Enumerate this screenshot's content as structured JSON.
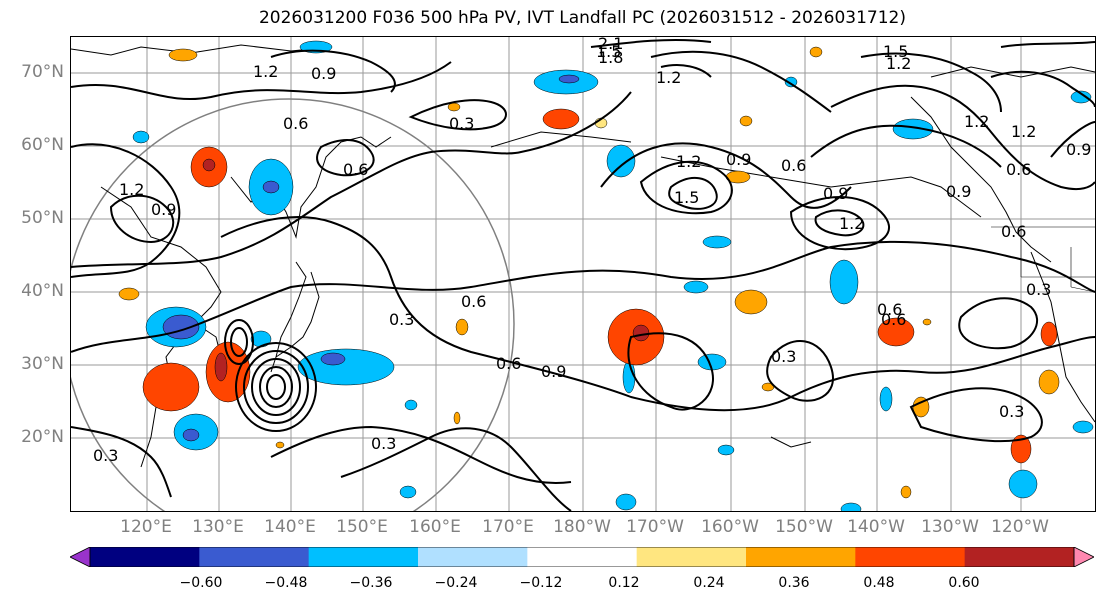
{
  "title": "2026031200 F036 500 hPa PV, IVT Landfall PC (2026031512 - 2026031712)",
  "map": {
    "lat_labels": [
      "70°N",
      "60°N",
      "50°N",
      "40°N",
      "30°N",
      "20°N"
    ],
    "lon_labels": [
      "120°E",
      "130°E",
      "140°E",
      "150°E",
      "160°E",
      "170°E",
      "180°W",
      "170°W",
      "160°W",
      "150°W",
      "140°W",
      "130°W",
      "120°W"
    ],
    "contour_labels": [
      "1.2",
      "0.9",
      "1.2",
      "0.9",
      "0.6",
      "0.6",
      "0.3",
      "0.6",
      "0.3",
      "0.6",
      "0.9",
      "0.3",
      "0.3",
      "1.2",
      "0.9",
      "1.5",
      "0.9",
      "1.2",
      "0.6",
      "1.2",
      "1.5",
      "2.1",
      "1.8",
      "1.2",
      "1.5",
      "1.2",
      "0.9",
      "0.6",
      "0.9",
      "0.6",
      "1.2",
      "0.6",
      "0.3",
      "0.6",
      "0.3",
      "0.3"
    ]
  },
  "colorbar": {
    "ticks": [
      "−0.60",
      "−0.48",
      "−0.36",
      "−0.24",
      "−0.12",
      "0.12",
      "0.24",
      "0.36",
      "0.48",
      "0.60"
    ],
    "colors": [
      "#9933cc",
      "#000080",
      "#3a5bd0",
      "#00bfff",
      "#b0e0ff",
      "#ffffff",
      "#ffe680",
      "#ffa500",
      "#ff4500",
      "#b22222",
      "#ff88b0"
    ]
  }
}
